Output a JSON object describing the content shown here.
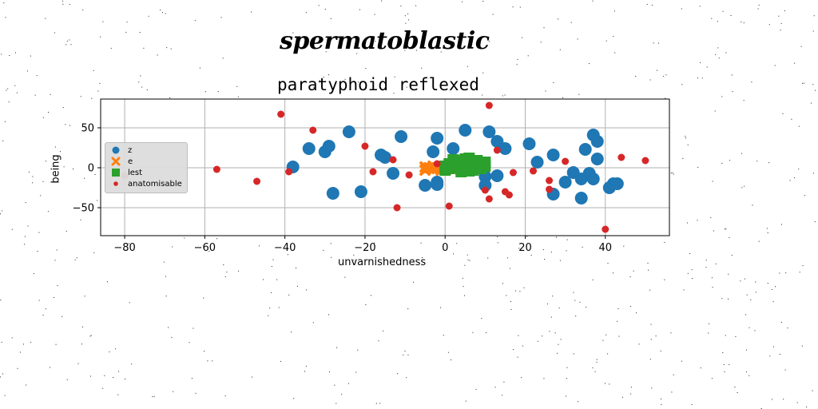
{
  "chart_data": {
    "type": "scatter",
    "supertitle": "spermatoblastic",
    "title": "paratyphoid reflexed",
    "xlabel": "unvarnishedness",
    "ylabel": "being",
    "xlim": [
      -86,
      56
    ],
    "ylim": [
      -85,
      86
    ],
    "xticks": [
      -80,
      -60,
      -40,
      -20,
      0,
      20,
      40
    ],
    "yticks": [
      -50,
      0,
      50
    ],
    "grid": true,
    "legend_position": "center-left",
    "series": [
      {
        "name": "z",
        "color": "#1f77b4",
        "marker": "circle",
        "points": [
          [
            -38,
            1
          ],
          [
            -34,
            24
          ],
          [
            -30,
            20
          ],
          [
            -29,
            27
          ],
          [
            -28,
            -32
          ],
          [
            -24,
            45
          ],
          [
            -21,
            -30
          ],
          [
            -16,
            16
          ],
          [
            -15,
            13
          ],
          [
            -13,
            -7
          ],
          [
            -11,
            39
          ],
          [
            -5,
            -22
          ],
          [
            -3,
            20
          ],
          [
            -2,
            37
          ],
          [
            -2,
            -18
          ],
          [
            -2,
            -21
          ],
          [
            2,
            24
          ],
          [
            5,
            47
          ],
          [
            10,
            -11
          ],
          [
            10,
            -22
          ],
          [
            11,
            45
          ],
          [
            13,
            33
          ],
          [
            13,
            -10
          ],
          [
            15,
            24
          ],
          [
            21,
            30
          ],
          [
            23,
            7
          ],
          [
            27,
            16
          ],
          [
            27,
            -33
          ],
          [
            30,
            -18
          ],
          [
            32,
            -6
          ],
          [
            34,
            -14
          ],
          [
            34,
            -38
          ],
          [
            35,
            23
          ],
          [
            36,
            -7
          ],
          [
            37,
            -14
          ],
          [
            37,
            41
          ],
          [
            38,
            11
          ],
          [
            38,
            33
          ],
          [
            41,
            -25
          ],
          [
            42,
            -20
          ],
          [
            43,
            -20
          ]
        ]
      },
      {
        "name": "e",
        "color": "#ff7f0e",
        "marker": "x",
        "points": [
          [
            -5,
            -3
          ],
          [
            -4,
            0
          ],
          [
            -3,
            -2
          ],
          [
            -3,
            2
          ],
          [
            -2,
            -1
          ],
          [
            -1,
            1
          ],
          [
            0,
            -2
          ],
          [
            1,
            0
          ],
          [
            2,
            -3
          ],
          [
            -5,
            1
          ],
          [
            -1,
            -3
          ],
          [
            2,
            2
          ]
        ]
      },
      {
        "name": "lest",
        "color": "#2ca02c",
        "marker": "square",
        "points": [
          [
            0,
            2
          ],
          [
            1,
            5
          ],
          [
            2,
            0
          ],
          [
            3,
            8
          ],
          [
            4,
            3
          ],
          [
            5,
            -2
          ],
          [
            6,
            6
          ],
          [
            7,
            1
          ],
          [
            8,
            4
          ],
          [
            9,
            -1
          ],
          [
            10,
            7
          ],
          [
            0,
            -3
          ],
          [
            2,
            10
          ],
          [
            4,
            9
          ],
          [
            6,
            -4
          ],
          [
            8,
            9
          ],
          [
            10,
            2
          ],
          [
            1,
            -1
          ],
          [
            3,
            4
          ],
          [
            5,
            11
          ],
          [
            7,
            -3
          ],
          [
            9,
            5
          ],
          [
            4,
            -5
          ],
          [
            6,
            12
          ],
          [
            8,
            0
          ]
        ]
      },
      {
        "name": "anatomisable",
        "color": "#d62728",
        "marker": "circle-small",
        "points": [
          [
            -80,
            -10
          ],
          [
            -57,
            -2
          ],
          [
            -47,
            -17
          ],
          [
            -41,
            67
          ],
          [
            -39,
            -5
          ],
          [
            -33,
            47
          ],
          [
            -20,
            27
          ],
          [
            -18,
            -5
          ],
          [
            -13,
            10
          ],
          [
            -12,
            -50
          ],
          [
            -9,
            -9
          ],
          [
            -2,
            5
          ],
          [
            1,
            -48
          ],
          [
            10,
            -28
          ],
          [
            11,
            -39
          ],
          [
            11,
            78
          ],
          [
            13,
            22
          ],
          [
            15,
            -30
          ],
          [
            16,
            -34
          ],
          [
            17,
            -6
          ],
          [
            22,
            -4
          ],
          [
            26,
            -16
          ],
          [
            26,
            -27
          ],
          [
            30,
            8
          ],
          [
            40,
            -77
          ],
          [
            44,
            13
          ],
          [
            50,
            9
          ]
        ]
      }
    ]
  }
}
